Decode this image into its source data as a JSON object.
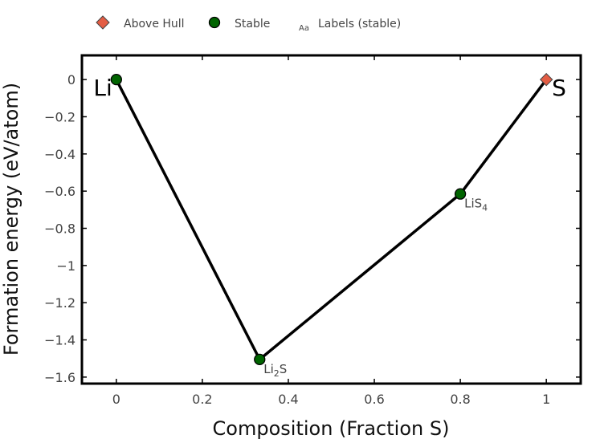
{
  "chart_data": {
    "type": "scatter",
    "xlabel": "Composition (Fraction S)",
    "ylabel": "Formation energy (eV/atom)",
    "xlim": [
      -0.08,
      1.08
    ],
    "ylim": [
      -1.635,
      0.13
    ],
    "x_ticks": [
      0,
      0.2,
      0.4,
      0.6,
      0.8,
      1
    ],
    "x_tick_labels": [
      "0",
      "0.2",
      "0.4",
      "0.6",
      "0.8",
      "1"
    ],
    "y_ticks": [
      0,
      -0.2,
      -0.4,
      -0.6,
      -0.8,
      -1,
      -1.2,
      -1.4,
      -1.6
    ],
    "y_tick_labels": [
      "0",
      "−0.2",
      "−0.4",
      "−0.6",
      "−0.8",
      "−1",
      "−1.2",
      "−1.4",
      "−1.6"
    ],
    "grid": false,
    "legend_position": "top",
    "legend": [
      {
        "name": "Above Hull",
        "symbol": "diamond"
      },
      {
        "name": "Stable",
        "symbol": "circle"
      },
      {
        "name": "Labels (stable)",
        "symbol": "text",
        "glyph": "Aa"
      }
    ],
    "hull_line": {
      "x": [
        0,
        0.3333,
        0.8,
        1
      ],
      "y": [
        0,
        -1.505,
        -0.615,
        0
      ]
    },
    "series": [
      {
        "name": "Stable",
        "points": [
          {
            "x": 0,
            "y": 0
          },
          {
            "x": 0.3333,
            "y": -1.505,
            "label": "Li",
            "sub": "2",
            "label_after": "S"
          },
          {
            "x": 0.8,
            "y": -0.615,
            "label": "LiS",
            "sub": "4",
            "label_after": ""
          }
        ]
      },
      {
        "name": "Above Hull",
        "points": [
          {
            "x": 1,
            "y": 0
          }
        ]
      }
    ],
    "element_labels": [
      {
        "text": "Li",
        "x": 0,
        "y": 0,
        "anchor": "end"
      },
      {
        "text": "S",
        "x": 1,
        "y": 0,
        "anchor": "start"
      }
    ]
  },
  "colors": {
    "stable_fill": "#006400",
    "above_hull_fill": "#e35d44",
    "line": "#000000",
    "frame": "#000000",
    "text": "#444444"
  }
}
